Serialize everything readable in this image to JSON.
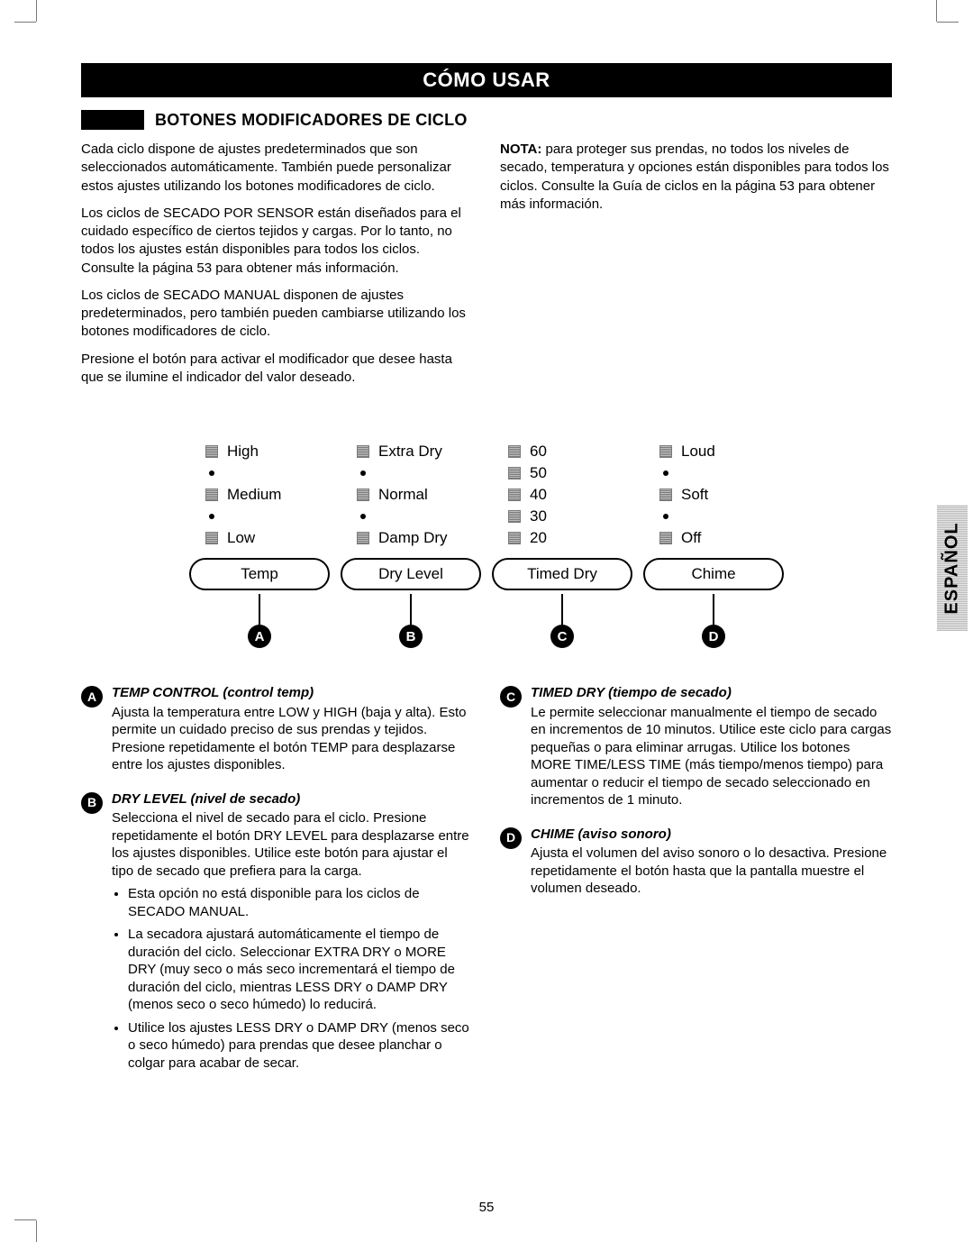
{
  "page_number": "55",
  "side_tab": "ESPAÑOL",
  "header": "CÓMO USAR",
  "subheader": "BOTONES MODIFICADORES DE CICLO",
  "intro": {
    "left": [
      "Cada ciclo dispone de ajustes predeterminados que son seleccionados automáticamente. También puede personalizar estos ajustes utilizando los botones modificadores de ciclo.",
      "Los ciclos de SECADO POR SENSOR están diseñados para el cuidado específico de ciertos tejidos y cargas. Por lo tanto, no todos los ajustes están disponibles para todos los ciclos. Consulte la página 53 para obtener más información.",
      "Los ciclos de SECADO MANUAL disponen de ajustes predeterminados, pero también pueden cambiarse utilizando los botones modificadores de ciclo.",
      "Presione el botón para activar el modificador que desee hasta que se ilumine el indicador del valor deseado."
    ],
    "right_bold": "NOTA:",
    "right_rest": " para proteger sus prendas, no todos los niveles de secado, temperatura y opciones están disponibles para todos los ciclos. Consulte la Guía de ciclos en la página 53 para obtener más información."
  },
  "panel": {
    "columns": [
      {
        "marker": "A",
        "button": "Temp",
        "options": [
          "High",
          "•",
          "Medium",
          "•",
          "Low"
        ]
      },
      {
        "marker": "B",
        "button": "Dry Level",
        "options": [
          "Extra Dry",
          "•",
          "Normal",
          "•",
          "Damp Dry"
        ]
      },
      {
        "marker": "C",
        "button": "Timed Dry",
        "options": [
          "60",
          "50",
          "40",
          "30",
          "20"
        ]
      },
      {
        "marker": "D",
        "button": "Chime",
        "options": [
          "Loud",
          "•",
          "Soft",
          "•",
          "Off"
        ]
      }
    ]
  },
  "descriptions": {
    "left": [
      {
        "marker": "A",
        "title": "TEMP CONTROL (control temp)",
        "text": "Ajusta la temperatura entre LOW y HIGH (baja y alta). Esto permite un cuidado preciso de sus prendas y tejidos. Presione repetidamente el botón TEMP para desplazarse entre los ajustes disponibles."
      },
      {
        "marker": "B",
        "title": "DRY LEVEL (nivel de secado)",
        "text": "Selecciona el nivel de secado para el ciclo. Presione repetidamente el botón DRY LEVEL para desplazarse entre los ajustes disponibles. Utilice este botón para ajustar el tipo de secado que prefiera para la carga.",
        "bullets": [
          "Esta opción no está disponible para los ciclos de SECADO MANUAL.",
          "La secadora ajustará automáticamente el tiempo de duración del ciclo. Seleccionar EXTRA DRY o MORE DRY (muy seco o más seco incrementará el tiempo de duración del ciclo, mientras LESS DRY o DAMP DRY (menos seco o seco húmedo) lo reducirá.",
          "Utilice los ajustes LESS DRY o DAMP DRY (menos seco o seco húmedo) para prendas que desee planchar o colgar para acabar de secar."
        ]
      }
    ],
    "right": [
      {
        "marker": "C",
        "title": "TIMED DRY (tiempo de secado)",
        "text": "Le permite seleccionar manualmente el tiempo de secado en incrementos de 10 minutos. Utilice este ciclo para cargas pequeñas o para eliminar arrugas. Utilice los botones MORE TIME/LESS TIME (más tiempo/menos tiempo) para aumentar o reducir el tiempo de secado seleccionado en incrementos de 1 minuto."
      },
      {
        "marker": "D",
        "title": "CHIME (aviso sonoro)",
        "text": "Ajusta el volumen del aviso sonoro o lo desactiva. Presione repetidamente el botón hasta que la pantalla muestre el volumen deseado."
      }
    ]
  }
}
